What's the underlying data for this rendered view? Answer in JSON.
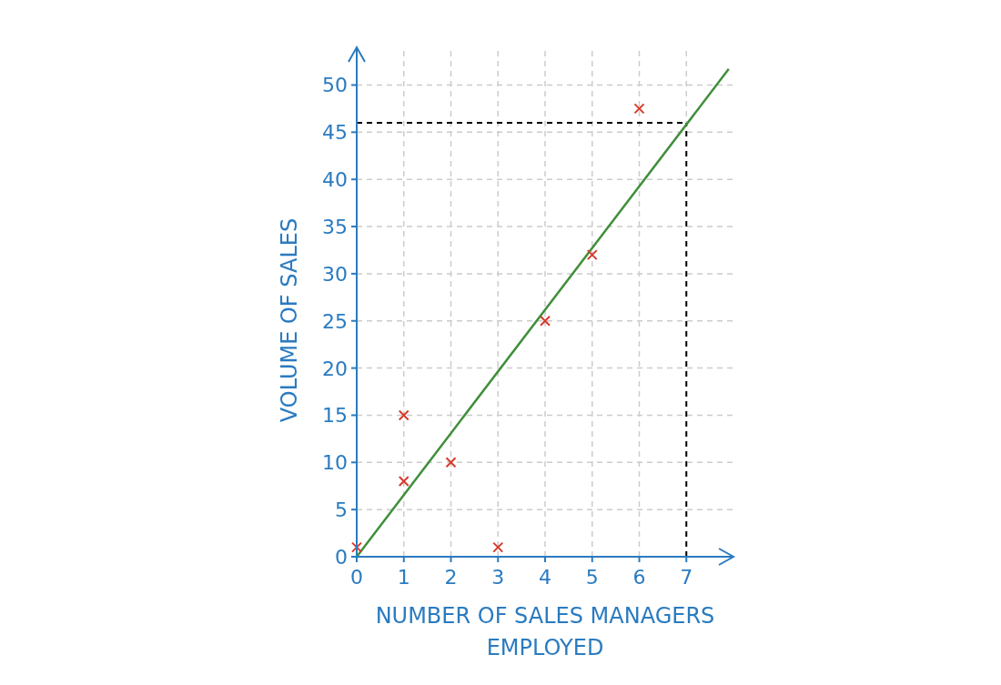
{
  "chart_data": {
    "type": "scatter",
    "xlabel": "NUMBER OF SALES MANAGERS EMPLOYED",
    "ylabel": "VOLUME OF SALES",
    "xlim": [
      0,
      8
    ],
    "ylim": [
      0,
      54
    ],
    "xticks": [
      0,
      1,
      2,
      3,
      4,
      5,
      6,
      7
    ],
    "yticks": [
      0,
      5,
      10,
      15,
      20,
      25,
      30,
      35,
      40,
      45,
      50
    ],
    "grid": true,
    "marker": "cross",
    "series": [
      {
        "color": "#d83a2c",
        "x": [
          0,
          1,
          1,
          2,
          3,
          4,
          5,
          6
        ],
        "values": [
          1,
          15,
          8,
          10,
          1,
          25,
          32,
          47.5
        ]
      },
      {
        "type": "line",
        "color": "#3f8f3a",
        "x": [
          0,
          7.9
        ],
        "values": [
          0,
          51.7
        ],
        "marker": "none"
      }
    ],
    "ref_lines": [
      {
        "axis": "x",
        "value": 7,
        "color": "#000000",
        "line_style": "dashed"
      },
      {
        "axis": "y",
        "value": 46,
        "color": "#000000",
        "line_style": "dashed"
      }
    ]
  }
}
